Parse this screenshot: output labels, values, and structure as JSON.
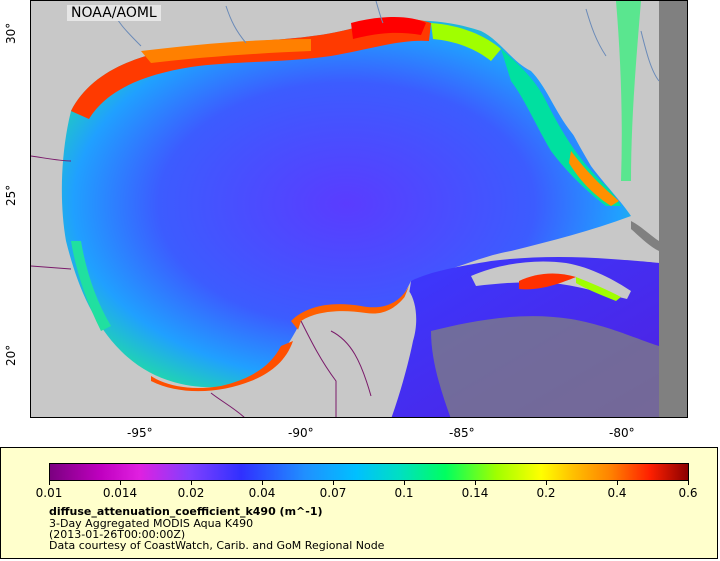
{
  "map": {
    "credit": "NOAA/AOML",
    "lat_ticks": [
      "30°",
      "25°",
      "20°"
    ],
    "lon_ticks": [
      "-95°",
      "-90°",
      "-85°",
      "-80°"
    ],
    "colors": {
      "land": "#c8c8c8",
      "no_data": "#808080",
      "deep_water": "#3a3aff",
      "coastal": "#ff3000",
      "border": "#7a1a6a",
      "rivers": "#6a8ab8"
    }
  },
  "legend": {
    "scale_ticks": [
      "0.01",
      "0.014",
      "0.02",
      "0.04",
      "0.07",
      "0.1",
      "0.14",
      "0.2",
      "0.4",
      "0.6"
    ],
    "variable": "diffuse_attenuation_coefficient_k490 (m^-1)",
    "product": "3-Day Aggregated MODIS Aqua K490",
    "date": "(2013-01-26T00:00:00Z)",
    "source": "Data courtesy of CoastWatch, Carib. and GoM Regional Node"
  }
}
